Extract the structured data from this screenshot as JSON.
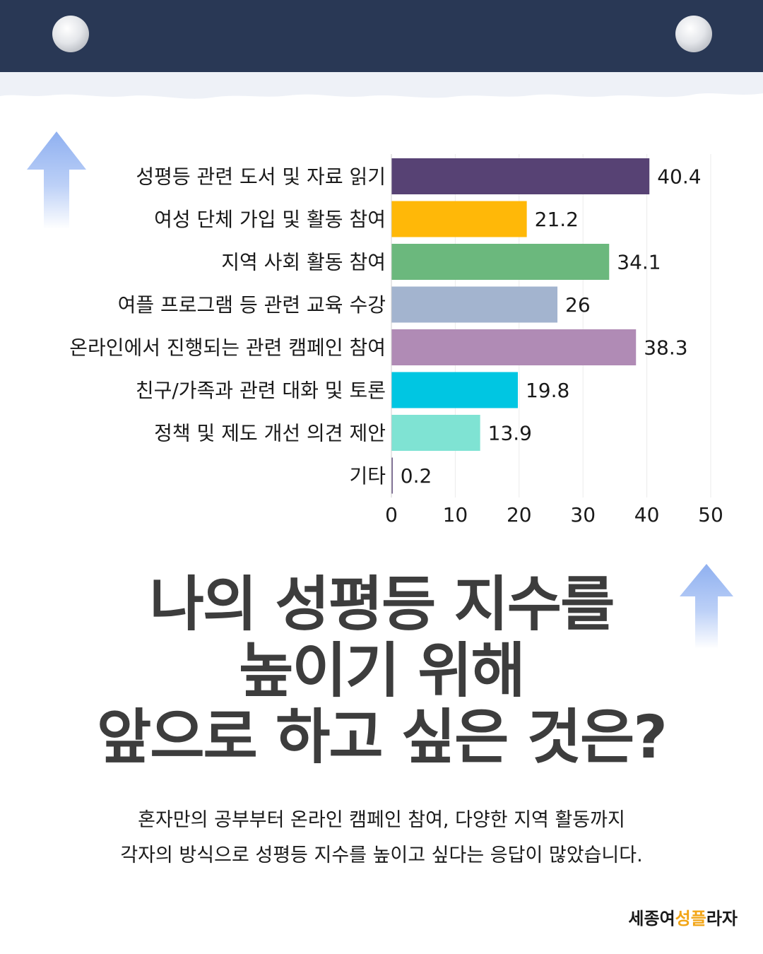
{
  "chart_data": {
    "type": "bar",
    "orientation": "horizontal",
    "categories": [
      "성평등 관련 도서 및 자료 읽기",
      "여성 단체 가입 및 활동 참여",
      "지역 사회 활동 참여",
      "여플 프로그램 등 관련 교육 수강",
      "온라인에서 진행되는 관련 캠페인 참여",
      "친구/가족과 관련 대화 및 토론",
      "정책 및 제도 개선 의견 제안",
      "기타"
    ],
    "values": [
      40.4,
      21.2,
      34.1,
      26,
      38.3,
      19.8,
      13.9,
      0.2
    ],
    "value_labels": [
      "40.4",
      "21.2",
      "34.1",
      "26",
      "38.3",
      "19.8",
      "13.9",
      "0.2"
    ],
    "colors": [
      "#574274",
      "#ffb808",
      "#6bb87d",
      "#a3b4cf",
      "#b08bb5",
      "#00c6e2",
      "#7fe3d3",
      "#574274"
    ],
    "xlim": [
      0,
      50
    ],
    "xticks": [
      0,
      10,
      20,
      30,
      40,
      50
    ],
    "xtick_labels": [
      "0",
      "10",
      "20",
      "30",
      "40",
      "50"
    ],
    "grid": "vertical",
    "legend": "none",
    "title": "",
    "xlabel": "",
    "ylabel": ""
  },
  "headline": {
    "line1": "나의 성평등 지수를",
    "line2": "높이기 위해",
    "line3": "앞으로 하고 싶은 것은?"
  },
  "body": {
    "line1": "혼자만의 공부부터 온라인 캠페인 참여, 다양한 지역 활동까지",
    "line2": "각자의 방식으로 성평등 지수를 높이고 싶다는 응답이 많았습니다."
  },
  "logo": {
    "part1": "세종여",
    "part2": "성플",
    "part3": "라자"
  },
  "colors": {
    "header": "#293855",
    "arrow": "#8fb0f0",
    "headline": "#3d3d3d",
    "logo_accent": "#f2a516"
  }
}
